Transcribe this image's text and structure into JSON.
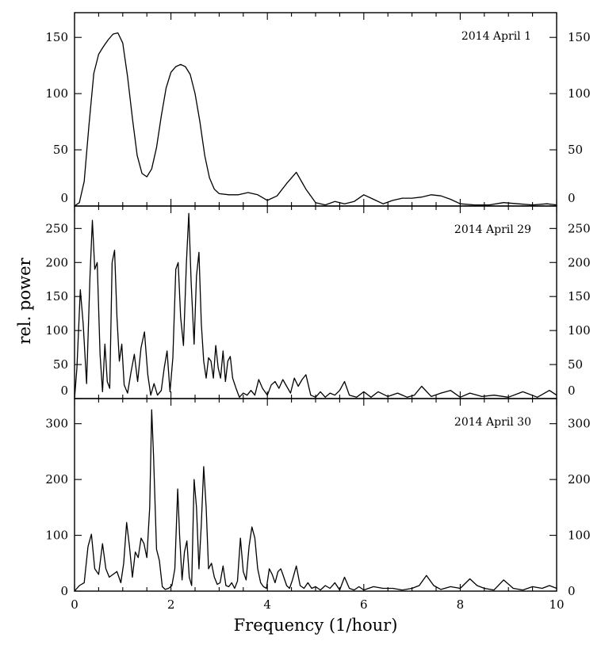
{
  "chart_data": {
    "type": "line",
    "xlabel": "Frequency (1/hour)",
    "ylabel": "rel. power",
    "xlim": [
      0,
      10
    ],
    "x_ticks": [
      0,
      2,
      4,
      6,
      8,
      10
    ],
    "line_color": "#000000",
    "panels": [
      {
        "annotation": "2014 April 1",
        "ylim": [
          0,
          172
        ],
        "y_ticks": [
          0,
          50,
          100,
          150
        ],
        "series": [
          {
            "x": [
              0,
              0.1,
              0.2,
              0.3,
              0.4,
              0.5,
              0.6,
              0.7,
              0.8,
              0.9,
              1.0,
              1.1,
              1.2,
              1.3,
              1.4,
              1.5,
              1.6,
              1.7,
              1.8,
              1.9,
              2.0,
              2.1,
              2.2,
              2.3,
              2.4,
              2.5,
              2.6,
              2.7,
              2.8,
              2.9,
              3.0,
              3.2,
              3.4,
              3.6,
              3.8,
              4.0,
              4.2,
              4.4,
              4.6,
              4.8,
              5.0,
              5.2,
              5.4,
              5.6,
              5.8,
              6.0,
              6.2,
              6.4,
              6.6,
              6.8,
              7.0,
              7.2,
              7.4,
              7.6,
              7.8,
              8.0,
              8.3,
              8.6,
              8.9,
              9.2,
              9.5,
              9.8,
              10.0
            ],
            "y": [
              0,
              3,
              22,
              72,
              118,
              135,
              142,
              148,
              153,
              154,
              145,
              115,
              78,
              45,
              29,
              26,
              33,
              52,
              80,
              105,
              119,
              124,
              126,
              124,
              117,
              100,
              75,
              45,
              25,
              15,
              11,
              10,
              10,
              12,
              10,
              5,
              9,
              20,
              30,
              15,
              3,
              1,
              4,
              2,
              4,
              10,
              6,
              2,
              5,
              7,
              7,
              8,
              10,
              9,
              6,
              2,
              1,
              1,
              3,
              2,
              1,
              2,
              1
            ]
          }
        ]
      },
      {
        "annotation": "2014 April 29",
        "ylim": [
          0,
          283
        ],
        "y_ticks": [
          0,
          50,
          100,
          150,
          200,
          250
        ],
        "series": [
          {
            "x": [
              0,
              0.05,
              0.12,
              0.18,
              0.25,
              0.32,
              0.37,
              0.42,
              0.47,
              0.53,
              0.58,
              0.63,
              0.68,
              0.73,
              0.78,
              0.83,
              0.88,
              0.93,
              0.98,
              1.03,
              1.1,
              1.17,
              1.24,
              1.31,
              1.38,
              1.45,
              1.52,
              1.58,
              1.65,
              1.72,
              1.8,
              1.86,
              1.92,
              1.98,
              2.04,
              2.1,
              2.15,
              2.2,
              2.26,
              2.32,
              2.37,
              2.42,
              2.48,
              2.53,
              2.58,
              2.63,
              2.68,
              2.73,
              2.78,
              2.83,
              2.88,
              2.93,
              2.98,
              3.03,
              3.08,
              3.13,
              3.18,
              3.23,
              3.28,
              3.35,
              3.42,
              3.5,
              3.58,
              3.66,
              3.74,
              3.82,
              3.9,
              4.0,
              4.08,
              4.16,
              4.24,
              4.32,
              4.4,
              4.48,
              4.56,
              4.64,
              4.72,
              4.8,
              4.9,
              5.0,
              5.1,
              5.2,
              5.3,
              5.4,
              5.5,
              5.6,
              5.7,
              5.85,
              6.0,
              6.15,
              6.3,
              6.5,
              6.7,
              6.9,
              7.05,
              7.2,
              7.4,
              7.6,
              7.8,
              8.0,
              8.2,
              8.45,
              8.7,
              9.0,
              9.3,
              9.6,
              9.85,
              10.0
            ],
            "y": [
              0,
              45,
              160,
              110,
              22,
              180,
              262,
              190,
              200,
              65,
              10,
              80,
              25,
              15,
              200,
              218,
              120,
              55,
              80,
              20,
              8,
              38,
              65,
              25,
              75,
              98,
              35,
              5,
              22,
              5,
              12,
              45,
              70,
              10,
              60,
              190,
              200,
              120,
              78,
              200,
              272,
              170,
              80,
              180,
              215,
              110,
              55,
              30,
              60,
              55,
              30,
              78,
              45,
              30,
              70,
              25,
              55,
              62,
              30,
              15,
              2,
              8,
              5,
              12,
              5,
              28,
              15,
              5,
              20,
              25,
              15,
              28,
              18,
              8,
              30,
              18,
              28,
              35,
              5,
              2,
              10,
              2,
              8,
              5,
              12,
              25,
              5,
              2,
              10,
              2,
              10,
              3,
              8,
              2,
              5,
              18,
              3,
              8,
              12,
              2,
              8,
              3,
              5,
              2,
              10,
              2,
              12,
              5
            ]
          }
        ]
      },
      {
        "annotation": "2014 April 30",
        "ylim": [
          0,
          345
        ],
        "y_ticks": [
          0,
          100,
          200,
          300
        ],
        "series": [
          {
            "x": [
              0,
              0.1,
              0.2,
              0.28,
              0.35,
              0.42,
              0.5,
              0.58,
              0.65,
              0.72,
              0.8,
              0.88,
              0.96,
              1.02,
              1.08,
              1.14,
              1.2,
              1.26,
              1.32,
              1.38,
              1.44,
              1.5,
              1.56,
              1.6,
              1.64,
              1.7,
              1.76,
              1.82,
              1.88,
              1.95,
              2.02,
              2.08,
              2.14,
              2.18,
              2.23,
              2.28,
              2.33,
              2.38,
              2.43,
              2.48,
              2.53,
              2.58,
              2.63,
              2.68,
              2.73,
              2.78,
              2.84,
              2.9,
              2.96,
              3.02,
              3.08,
              3.14,
              3.2,
              3.26,
              3.32,
              3.38,
              3.44,
              3.5,
              3.56,
              3.62,
              3.68,
              3.74,
              3.8,
              3.86,
              3.92,
              3.98,
              4.04,
              4.1,
              4.16,
              4.22,
              4.28,
              4.34,
              4.4,
              4.46,
              4.52,
              4.6,
              4.68,
              4.76,
              4.84,
              4.92,
              5.0,
              5.1,
              5.2,
              5.3,
              5.4,
              5.5,
              5.6,
              5.7,
              5.8,
              5.9,
              6.0,
              6.2,
              6.4,
              6.6,
              6.8,
              7.0,
              7.15,
              7.3,
              7.45,
              7.6,
              7.8,
              8.0,
              8.2,
              8.35,
              8.5,
              8.7,
              8.9,
              9.1,
              9.3,
              9.5,
              9.7,
              9.85,
              10.0
            ],
            "y": [
              0,
              10,
              15,
              80,
              102,
              40,
              30,
              85,
              40,
              25,
              30,
              35,
              15,
              50,
              123,
              80,
              25,
              70,
              60,
              95,
              85,
              60,
              150,
              325,
              240,
              75,
              55,
              8,
              3,
              5,
              10,
              40,
              183,
              100,
              20,
              70,
              90,
              25,
              10,
              200,
              150,
              40,
              120,
              223,
              150,
              40,
              50,
              25,
              12,
              15,
              45,
              10,
              8,
              15,
              5,
              18,
              95,
              35,
              20,
              80,
              115,
              95,
              40,
              15,
              8,
              5,
              40,
              30,
              15,
              35,
              40,
              25,
              10,
              5,
              20,
              45,
              10,
              5,
              15,
              5,
              8,
              2,
              10,
              5,
              15,
              2,
              25,
              5,
              2,
              8,
              2,
              8,
              5,
              5,
              2,
              5,
              10,
              28,
              10,
              3,
              8,
              5,
              22,
              10,
              5,
              2,
              20,
              5,
              2,
              8,
              5,
              10,
              5
            ]
          }
        ]
      }
    ]
  }
}
